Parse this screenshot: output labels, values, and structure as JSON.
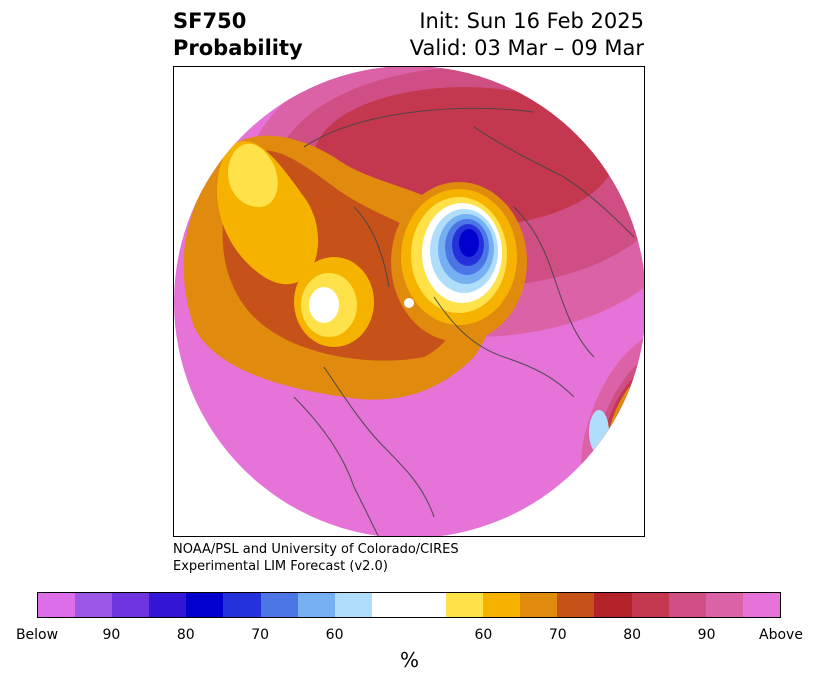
{
  "title": {
    "variable": "SF750",
    "subtitle": "Probability",
    "init": "Init: Sun 16 Feb 2025",
    "valid": "Valid: 03 Mar – 09 Mar"
  },
  "credit": {
    "line1": "NOAA/PSL and University of Colorado/CIRES",
    "line2": "Experimental LIM Forecast (v2.0)"
  },
  "colorbar": {
    "colors": [
      "#dd6ee8",
      "#9b57e6",
      "#6e35de",
      "#3316d6",
      "#0000cc",
      "#2532dc",
      "#4c76e6",
      "#74b0f2",
      "#b0defa",
      "#ffffff",
      "#ffffff",
      "#ffe24a",
      "#f5b300",
      "#e08a0e",
      "#c6521a",
      "#b2232a",
      "#c4384f",
      "#cf4f84",
      "#dc62a8",
      "#e573d8"
    ],
    "ticks": [
      "Below",
      "90",
      "80",
      "70",
      "60",
      "60",
      "70",
      "80",
      "90",
      "Above"
    ],
    "unit": "%"
  }
}
